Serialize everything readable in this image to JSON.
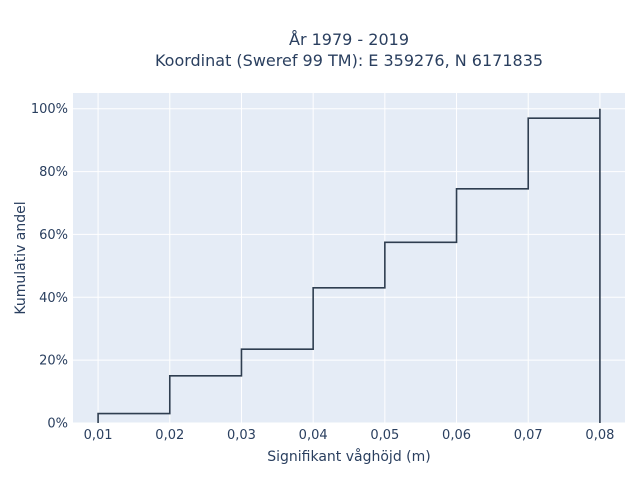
{
  "chart_data": {
    "type": "line",
    "subtype": "ecdf-step",
    "title_line1": "År 1979 - 2019",
    "title_line2": "Koordinat (Sweref 99 TM): E 359276, N 6171835",
    "xlabel": "Signifikant våghöjd (m)",
    "ylabel": "Kumulativ andel",
    "xlim": [
      0.0065,
      0.0835
    ],
    "ylim": [
      0,
      1.05
    ],
    "x_ticks": [
      0.01,
      0.02,
      0.03,
      0.04,
      0.05,
      0.06,
      0.07,
      0.08
    ],
    "x_tick_labels": [
      "0,01",
      "0,02",
      "0,03",
      "0,04",
      "0,05",
      "0,06",
      "0,07",
      "0,08"
    ],
    "y_ticks": [
      0,
      0.2,
      0.4,
      0.6,
      0.8,
      1.0
    ],
    "y_tick_labels": [
      "0%",
      "20%",
      "40%",
      "60%",
      "80%",
      "100%"
    ],
    "grid": true,
    "colors": {
      "plot_bg": "#e5ecf6",
      "grid": "#ffffff",
      "line": "#2f3e50",
      "text": "#2a3f5f"
    },
    "x": [
      0.01,
      0.02,
      0.03,
      0.04,
      0.05,
      0.06,
      0.07,
      0.08
    ],
    "y": [
      0.03,
      0.15,
      0.235,
      0.43,
      0.575,
      0.745,
      0.97,
      1.0
    ]
  }
}
